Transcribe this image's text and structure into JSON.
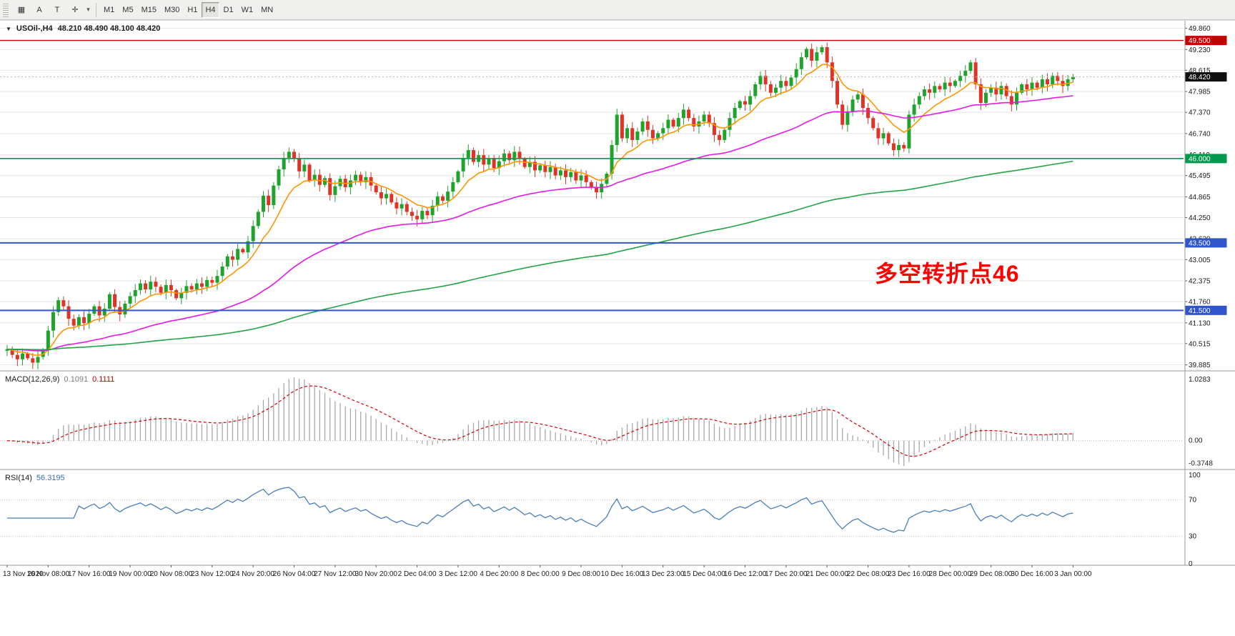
{
  "toolbar": {
    "tools": [
      {
        "name": "chart-grid",
        "glyph": "▦"
      },
      {
        "name": "annotate-a",
        "glyph": "A"
      },
      {
        "name": "text-tool",
        "glyph": "T"
      },
      {
        "name": "crosshair-tool",
        "glyph": "✛"
      },
      {
        "name": "dropdown-caret",
        "glyph": "▾"
      }
    ],
    "timeframes": [
      "M1",
      "M5",
      "M15",
      "M30",
      "H1",
      "H4",
      "D1",
      "W1",
      "MN"
    ],
    "active_timeframe": "H4"
  },
  "chart": {
    "symbol": "USOil-,H4",
    "ohlc": "48.210 48.490 48.100 48.420",
    "collapse_icon": "▼"
  },
  "chart_data": {
    "type": "candlestick",
    "symbol": "USOil-",
    "timeframe": "H4",
    "current": {
      "open": 48.21,
      "high": 48.49,
      "low": 48.1,
      "close": 48.42
    },
    "current_price": 48.42,
    "current_price_label": "48.420",
    "price_axis": {
      "min": 39.77,
      "max": 50.0,
      "labels": [
        49.86,
        49.23,
        48.615,
        47.985,
        47.37,
        46.74,
        46.11,
        45.495,
        44.865,
        44.25,
        43.62,
        43.005,
        42.375,
        41.76,
        41.13,
        40.515,
        39.885
      ]
    },
    "hlines": [
      {
        "value": 49.5,
        "label": "49.500",
        "color": "#c40000",
        "width": 1.4
      },
      {
        "value": 46.0,
        "label": "46.000",
        "color": "#009a4e",
        "width": 1.6
      },
      {
        "value": 43.5,
        "label": "43.500",
        "color": "#2f55cc",
        "width": 2
      },
      {
        "value": 41.5,
        "label": "41.500",
        "color": "#2f55cc",
        "width": 2
      }
    ],
    "colors": {
      "up": "#1fa32c",
      "down": "#e03328",
      "macd_hist": "#a8a8a8",
      "macd_signal": "#d40000",
      "rsi": "#4a7ebb",
      "grid": "#e3e3e3"
    },
    "ma": [
      {
        "period": 10,
        "color": "#ff9500"
      },
      {
        "period": 55,
        "color": "#e619e6"
      },
      {
        "period": 200,
        "color": "#22a347"
      }
    ],
    "bars_per_label": 8,
    "x_labels": [
      "13 Nov 2020",
      "16 Nov 08:00",
      "17 Nov 16:00",
      "19 Nov 00:00",
      "20 Nov 08:00",
      "23 Nov 12:00",
      "24 Nov 20:00",
      "26 Nov 04:00",
      "27 Nov 12:00",
      "30 Nov 20:00",
      "2 Dec 04:00",
      "3 Dec 12:00",
      "4 Dec 20:00",
      "8 Dec 00:00",
      "9 Dec 08:00",
      "10 Dec 16:00",
      "13 Dec 23:00",
      "15 Dec 04:00",
      "16 Dec 12:00",
      "17 Dec 20:00",
      "21 Dec 00:00",
      "22 Dec 08:00",
      "23 Dec 16:00",
      "28 Dec 00:00",
      "29 Dec 08:00",
      "30 Dec 16:00",
      "3 Jan 00:00"
    ],
    "closes": [
      40.35,
      40.18,
      40.05,
      40.22,
      40.08,
      39.95,
      40.12,
      40.32,
      40.9,
      41.45,
      41.8,
      41.62,
      41.25,
      41.05,
      41.3,
      41.12,
      41.4,
      41.62,
      41.35,
      41.55,
      41.98,
      41.6,
      41.38,
      41.7,
      41.92,
      42.1,
      42.3,
      42.12,
      42.35,
      42.2,
      42.02,
      42.25,
      42.1,
      41.86,
      42.02,
      42.22,
      42.12,
      42.3,
      42.2,
      42.4,
      42.32,
      42.52,
      42.8,
      43.1,
      43.0,
      43.32,
      43.22,
      43.55,
      44.0,
      44.42,
      44.9,
      44.62,
      45.2,
      45.68,
      46.02,
      46.2,
      46.0,
      45.62,
      45.82,
      45.35,
      45.52,
      45.22,
      45.42,
      44.92,
      45.18,
      45.4,
      45.15,
      45.35,
      45.52,
      45.3,
      45.45,
      45.2,
      45.0,
      44.82,
      44.95,
      44.7,
      44.52,
      44.65,
      44.42,
      44.3,
      44.2,
      44.45,
      44.32,
      44.6,
      44.88,
      44.75,
      45.02,
      45.3,
      45.62,
      46.0,
      46.25,
      45.9,
      46.1,
      45.82,
      46.0,
      45.72,
      45.92,
      46.15,
      45.95,
      46.2,
      46.0,
      45.75,
      45.9,
      45.65,
      45.8,
      45.6,
      45.75,
      45.5,
      45.65,
      45.45,
      45.6,
      45.35,
      45.5,
      45.3,
      45.15,
      45.0,
      45.25,
      45.55,
      46.4,
      47.3,
      46.6,
      46.9,
      46.55,
      46.8,
      47.1,
      46.85,
      46.6,
      46.75,
      46.9,
      47.15,
      46.95,
      47.2,
      47.45,
      47.2,
      46.95,
      47.1,
      47.3,
      47.05,
      46.7,
      46.55,
      46.85,
      47.2,
      47.5,
      47.7,
      47.6,
      47.85,
      48.2,
      48.45,
      48.2,
      47.95,
      48.1,
      48.3,
      48.15,
      48.4,
      48.65,
      49.0,
      49.25,
      48.9,
      49.15,
      49.3,
      48.85,
      48.3,
      47.6,
      47.0,
      47.4,
      47.75,
      47.9,
      47.5,
      47.2,
      46.9,
      46.6,
      46.75,
      46.45,
      46.25,
      46.4,
      46.3,
      47.3,
      47.6,
      47.85,
      48.05,
      47.95,
      48.15,
      48.05,
      48.25,
      48.15,
      48.3,
      48.45,
      48.6,
      48.85,
      48.2,
      47.65,
      47.95,
      48.1,
      47.9,
      48.15,
      47.85,
      47.6,
      47.95,
      48.2,
      48.05,
      48.25,
      48.1,
      48.35,
      48.2,
      48.45,
      48.3,
      48.15,
      48.35,
      48.42
    ],
    "wick": {
      "base": 0.05,
      "amp": 0.16
    },
    "macd": {
      "name": "MACD(12,26,9)",
      "value_main": "0.1091",
      "value_signal": "0.1111",
      "fast": 12,
      "slow": 26,
      "signal": 9,
      "range": [
        -0.45,
        1.1
      ],
      "axis_labels": [
        "1.0283",
        "0.00",
        "-0.3748"
      ],
      "axis_values": [
        1.0283,
        0,
        -0.3748
      ]
    },
    "rsi": {
      "name": "RSI(14)",
      "value": "56.3195",
      "period": 14,
      "levels": [
        70,
        30
      ],
      "range": [
        0,
        100
      ],
      "axis_labels": [
        "100",
        "70",
        "30",
        "0"
      ],
      "axis_values": [
        100,
        70,
        30,
        0
      ]
    },
    "annotation": {
      "text": "多空转折点46",
      "color": "#ff0000"
    }
  }
}
